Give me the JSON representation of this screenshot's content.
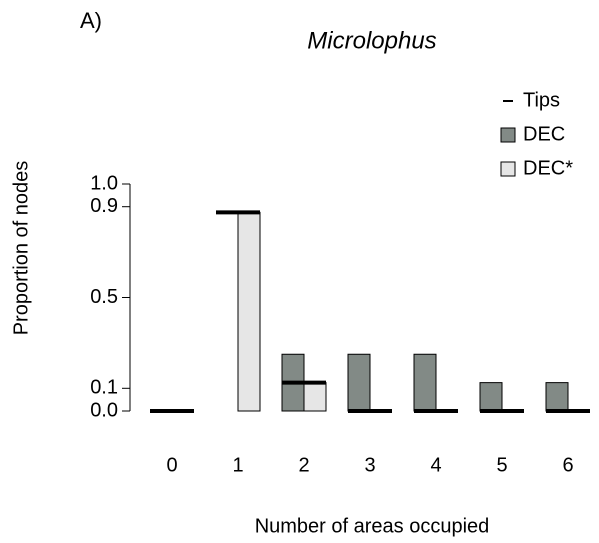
{
  "chart_data": {
    "type": "bar",
    "panel_label": "A)",
    "title": "Microlophus",
    "xlabel": "Number of areas occupied",
    "ylabel": "Proportion of nodes",
    "categories": [
      "0",
      "1",
      "2",
      "3",
      "4",
      "5",
      "6"
    ],
    "series": [
      {
        "name": "Tips",
        "color": "#000000",
        "mark": "dash",
        "values": [
          0,
          0.875,
          0.125,
          0,
          0,
          0,
          0
        ]
      },
      {
        "name": "DEC",
        "color": "#828a86",
        "mark": "bar",
        "values": [
          0,
          0,
          0.25,
          0.25,
          0.25,
          0.125,
          0.125
        ]
      },
      {
        "name": "DEC*",
        "color": "#e6e6e6",
        "mark": "bar",
        "values": [
          0,
          0.875,
          0.125,
          0,
          0,
          0,
          0
        ]
      }
    ],
    "ylim": [
      0,
      1
    ],
    "yticks": [
      {
        "value": 0,
        "label": "0.0"
      },
      0.1,
      0.5,
      0.9,
      {
        "value": 1,
        "label": "1.0"
      }
    ],
    "legend": "top-right"
  }
}
